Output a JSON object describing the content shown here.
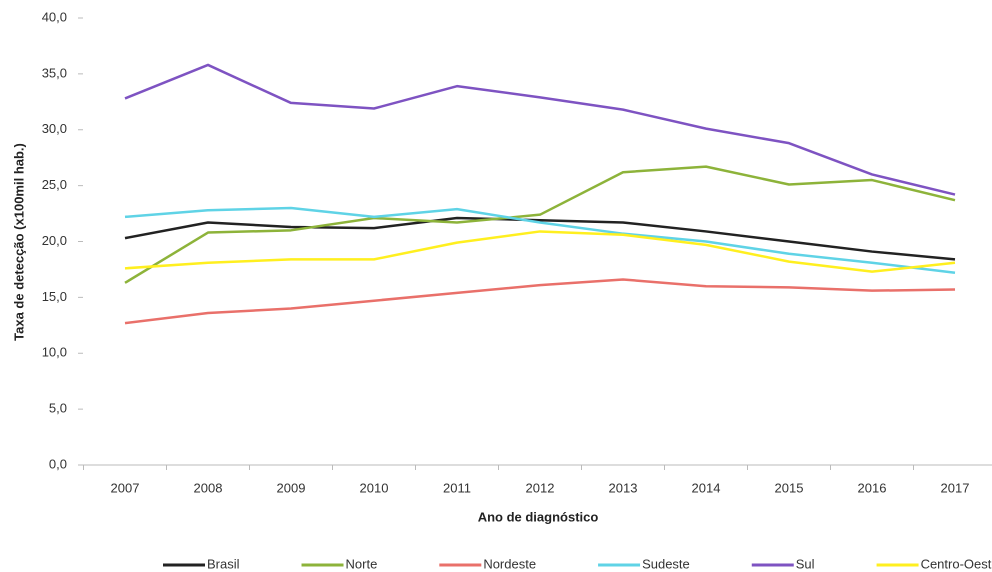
{
  "chart_data": {
    "type": "line",
    "x_label": "Ano de diagnóstico",
    "y_label": "Taxa de detecção (x100mil hab.)",
    "categories": [
      "2007",
      "2008",
      "2009",
      "2010",
      "2011",
      "2012",
      "2013",
      "2014",
      "2015",
      "2016",
      "2017"
    ],
    "series": [
      {
        "name": "Brasil",
        "color": "#222222",
        "values": [
          20.3,
          21.7,
          21.3,
          21.2,
          22.1,
          21.9,
          21.7,
          20.9,
          20.0,
          19.1,
          18.4
        ]
      },
      {
        "name": "Norte",
        "color": "#8db33a",
        "values": [
          16.3,
          20.8,
          21.0,
          22.1,
          21.7,
          22.4,
          26.2,
          26.7,
          25.1,
          25.5,
          23.7
        ]
      },
      {
        "name": "Nordeste",
        "color": "#e9706a",
        "values": [
          12.7,
          13.6,
          14.0,
          14.7,
          15.4,
          16.1,
          16.6,
          16.0,
          15.9,
          15.6,
          15.7
        ]
      },
      {
        "name": "Sudeste",
        "color": "#5fd3e6",
        "values": [
          22.2,
          22.8,
          23.0,
          22.2,
          22.9,
          21.7,
          20.7,
          20.0,
          18.9,
          18.1,
          17.2
        ]
      },
      {
        "name": "Sul",
        "color": "#7e53c2",
        "values": [
          32.8,
          35.8,
          32.4,
          31.9,
          33.9,
          32.9,
          31.8,
          30.1,
          28.8,
          26.0,
          24.2
        ]
      },
      {
        "name": "Centro-Oeste",
        "color": "#ffef1f",
        "values": [
          17.6,
          18.1,
          18.4,
          18.4,
          19.9,
          20.9,
          20.6,
          19.7,
          18.2,
          17.3,
          18.1
        ]
      }
    ],
    "ylim": [
      0,
      40
    ],
    "yticks": [
      {
        "value": 0,
        "label": "0,0"
      },
      {
        "value": 5,
        "label": "5,0"
      },
      {
        "value": 10,
        "label": "10,0"
      },
      {
        "value": 15,
        "label": "15,0"
      },
      {
        "value": 20,
        "label": "20,0"
      },
      {
        "value": 25,
        "label": "25,0"
      },
      {
        "value": 30,
        "label": "30,0"
      },
      {
        "value": 35,
        "label": "35,0"
      },
      {
        "value": 40,
        "label": "40,0"
      }
    ],
    "grid": false,
    "legend": "bottom"
  }
}
